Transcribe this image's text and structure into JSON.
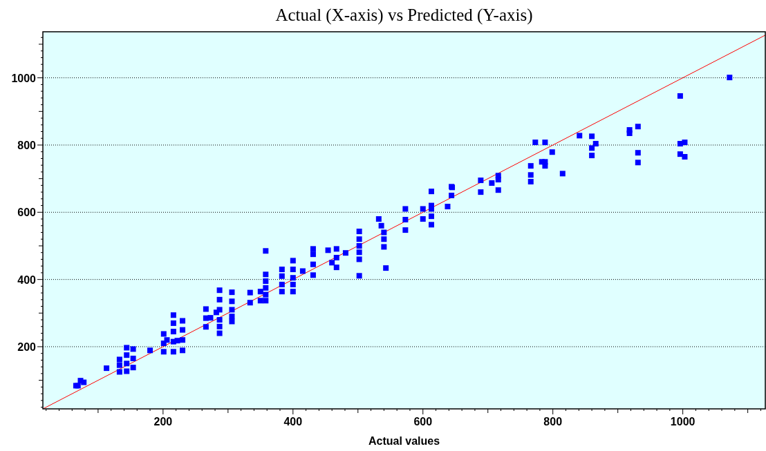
{
  "chart_data": {
    "type": "scatter",
    "title": "Actual (X-axis) vs Predicted (Y-axis)",
    "xlabel": "Actual values",
    "grid": "y",
    "xlim": [
      15,
      1127
    ],
    "ylim": [
      15,
      1137
    ],
    "xticks": [
      {
        "value": 20,
        "label": null
      },
      {
        "value": 40,
        "label": null
      },
      {
        "value": 60,
        "label": null
      },
      {
        "value": 80,
        "label": null
      },
      {
        "value": 100,
        "label": null
      },
      {
        "value": 120,
        "label": null
      },
      {
        "value": 140,
        "label": null
      },
      {
        "value": 160,
        "label": null
      },
      {
        "value": 180,
        "label": null
      },
      200,
      {
        "value": 220,
        "label": null
      },
      {
        "value": 240,
        "label": null
      },
      {
        "value": 260,
        "label": null
      },
      {
        "value": 280,
        "label": null
      },
      {
        "value": 300,
        "label": null
      },
      {
        "value": 320,
        "label": null
      },
      {
        "value": 340,
        "label": null
      },
      {
        "value": 360,
        "label": null
      },
      {
        "value": 380,
        "label": null
      },
      400,
      {
        "value": 420,
        "label": null
      },
      {
        "value": 440,
        "label": null
      },
      {
        "value": 460,
        "label": null
      },
      {
        "value": 480,
        "label": null
      },
      {
        "value": 500,
        "label": null
      },
      {
        "value": 520,
        "label": null
      },
      {
        "value": 540,
        "label": null
      },
      {
        "value": 560,
        "label": null
      },
      {
        "value": 580,
        "label": null
      },
      600,
      {
        "value": 620,
        "label": null
      },
      {
        "value": 640,
        "label": null
      },
      {
        "value": 660,
        "label": null
      },
      {
        "value": 680,
        "label": null
      },
      {
        "value": 700,
        "label": null
      },
      {
        "value": 720,
        "label": null
      },
      {
        "value": 740,
        "label": null
      },
      {
        "value": 760,
        "label": null
      },
      {
        "value": 780,
        "label": null
      },
      800,
      {
        "value": 820,
        "label": null
      },
      {
        "value": 840,
        "label": null
      },
      {
        "value": 860,
        "label": null
      },
      {
        "value": 880,
        "label": null
      },
      {
        "value": 900,
        "label": null
      },
      {
        "value": 920,
        "label": null
      },
      {
        "value": 940,
        "label": null
      },
      {
        "value": 960,
        "label": null
      },
      {
        "value": 980,
        "label": null
      },
      1000,
      {
        "value": 1020,
        "label": null
      },
      {
        "value": 1040,
        "label": null
      },
      {
        "value": 1060,
        "label": null
      },
      {
        "value": 1080,
        "label": null
      },
      {
        "value": 1100,
        "label": null
      },
      {
        "value": 1120,
        "label": null
      }
    ],
    "yticks": [
      {
        "value": 20,
        "label": null
      },
      {
        "value": 40,
        "label": null
      },
      {
        "value": 60,
        "label": null
      },
      {
        "value": 80,
        "label": null
      },
      {
        "value": 100,
        "label": null
      },
      {
        "value": 120,
        "label": null
      },
      {
        "value": 140,
        "label": null
      },
      {
        "value": 160,
        "label": null
      },
      {
        "value": 180,
        "label": null
      },
      200,
      {
        "value": 220,
        "label": null
      },
      {
        "value": 240,
        "label": null
      },
      {
        "value": 260,
        "label": null
      },
      {
        "value": 280,
        "label": null
      },
      {
        "value": 300,
        "label": null
      },
      {
        "value": 320,
        "label": null
      },
      {
        "value": 340,
        "label": null
      },
      {
        "value": 360,
        "label": null
      },
      {
        "value": 380,
        "label": null
      },
      400,
      {
        "value": 420,
        "label": null
      },
      {
        "value": 440,
        "label": null
      },
      {
        "value": 460,
        "label": null
      },
      {
        "value": 480,
        "label": null
      },
      {
        "value": 500,
        "label": null
      },
      {
        "value": 520,
        "label": null
      },
      {
        "value": 540,
        "label": null
      },
      {
        "value": 560,
        "label": null
      },
      {
        "value": 580,
        "label": null
      },
      600,
      {
        "value": 620,
        "label": null
      },
      {
        "value": 640,
        "label": null
      },
      {
        "value": 660,
        "label": null
      },
      {
        "value": 680,
        "label": null
      },
      {
        "value": 700,
        "label": null
      },
      {
        "value": 720,
        "label": null
      },
      {
        "value": 740,
        "label": null
      },
      {
        "value": 760,
        "label": null
      },
      {
        "value": 780,
        "label": null
      },
      800,
      {
        "value": 820,
        "label": null
      },
      {
        "value": 840,
        "label": null
      },
      {
        "value": 860,
        "label": null
      },
      {
        "value": 880,
        "label": null
      },
      {
        "value": 900,
        "label": null
      },
      {
        "value": 920,
        "label": null
      },
      {
        "value": 940,
        "label": null
      },
      {
        "value": 960,
        "label": null
      },
      {
        "value": 980,
        "label": null
      },
      1000,
      {
        "value": 1020,
        "label": null
      },
      {
        "value": 1040,
        "label": null
      },
      {
        "value": 1060,
        "label": null
      },
      {
        "value": 1080,
        "label": null
      },
      {
        "value": 1100,
        "label": null
      },
      {
        "value": 1120,
        "label": null
      }
    ],
    "series": [
      {
        "color": "#0000ff",
        "marker": "square",
        "x": [
          66,
          69,
          73,
          78,
          113,
          133,
          133,
          133,
          144,
          144,
          144,
          144,
          154,
          154,
          154,
          180,
          201,
          201,
          201,
          206,
          216,
          216,
          216,
          216,
          216,
          222,
          230,
          230,
          230,
          230,
          266,
          266,
          266,
          273,
          282,
          287,
          287,
          287,
          287,
          287,
          287,
          306,
          306,
          306,
          306,
          306,
          334,
          334,
          350,
          350,
          358,
          358,
          358,
          358,
          358,
          358,
          383,
          383,
          383,
          383,
          400,
          400,
          400,
          400,
          400,
          415,
          431,
          431,
          431,
          431,
          454,
          460,
          467,
          467,
          467,
          481,
          502,
          502,
          502,
          502,
          502,
          502,
          532,
          536,
          540,
          540,
          540,
          543,
          573,
          573,
          573,
          600,
          600,
          613,
          613,
          613,
          613,
          613,
          638,
          644,
          644,
          645,
          689,
          689,
          706,
          716,
          716,
          716,
          766,
          766,
          766,
          773,
          783,
          788,
          788,
          788,
          799,
          815,
          841,
          860,
          860,
          860,
          866,
          918,
          918,
          931,
          931,
          931,
          996,
          996,
          996,
          1003,
          1003,
          1072
        ],
        "values": [
          84,
          84,
          99,
          94,
          136,
          162,
          145,
          125,
          197,
          175,
          150,
          127,
          193,
          165,
          138,
          189,
          238,
          210,
          185,
          220,
          294,
          270,
          245,
          215,
          185,
          218,
          277,
          250,
          220,
          189,
          312,
          285,
          259,
          286,
          302,
          368,
          340,
          310,
          280,
          260,
          240,
          362,
          335,
          310,
          290,
          275,
          361,
          331,
          364,
          337,
          415,
          395,
          375,
          355,
          337,
          485,
          430,
          410,
          385,
          364,
          456,
          430,
          405,
          385,
          364,
          425,
          491,
          475,
          445,
          413,
          487,
          450,
          491,
          465,
          436,
          479,
          543,
          520,
          500,
          481,
          460,
          411,
          580,
          560,
          540,
          520,
          497,
          434,
          610,
          578,
          547,
          610,
          580,
          662,
          620,
          610,
          588,
          563,
          617,
          676,
          650,
          674,
          695,
          660,
          687,
          709,
          697,
          666,
          738,
          711,
          691,
          808,
          750,
          808,
          750,
          738,
          779,
          715,
          828,
          826,
          791,
          769,
          804,
          845,
          835,
          855,
          777,
          748,
          946,
          804,
          773,
          808,
          765,
          1001
        ]
      },
      {
        "type": "line",
        "color": "#ff0000",
        "x": [
          15,
          1127
        ],
        "values": [
          15,
          1127
        ]
      }
    ]
  }
}
